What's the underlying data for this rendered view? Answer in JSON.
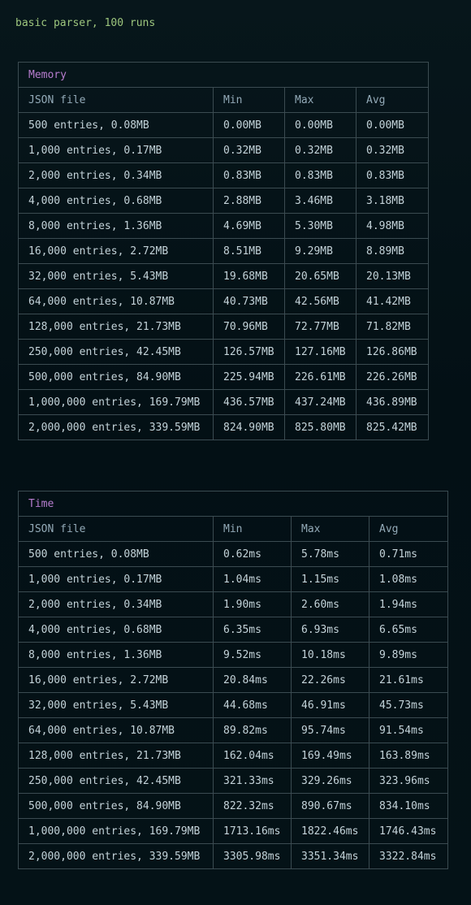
{
  "header": {
    "title": "basic parser, 100 runs"
  },
  "memory": {
    "caption": "Memory",
    "columns": [
      "JSON file",
      "Min",
      "Max",
      "Avg"
    ],
    "rows": [
      [
        "500 entries, 0.08MB",
        "0.00MB",
        "0.00MB",
        "0.00MB"
      ],
      [
        "1,000 entries, 0.17MB",
        "0.32MB",
        "0.32MB",
        "0.32MB"
      ],
      [
        "2,000 entries, 0.34MB",
        "0.83MB",
        "0.83MB",
        "0.83MB"
      ],
      [
        "4,000 entries, 0.68MB",
        "2.88MB",
        "3.46MB",
        "3.18MB"
      ],
      [
        "8,000 entries, 1.36MB",
        "4.69MB",
        "5.30MB",
        "4.98MB"
      ],
      [
        "16,000 entries, 2.72MB",
        "8.51MB",
        "9.29MB",
        "8.89MB"
      ],
      [
        "32,000 entries, 5.43MB",
        "19.68MB",
        "20.65MB",
        "20.13MB"
      ],
      [
        "64,000 entries, 10.87MB",
        "40.73MB",
        "42.56MB",
        "41.42MB"
      ],
      [
        "128,000 entries, 21.73MB",
        "70.96MB",
        "72.77MB",
        "71.82MB"
      ],
      [
        "250,000 entries, 42.45MB",
        "126.57MB",
        "127.16MB",
        "126.86MB"
      ],
      [
        "500,000 entries, 84.90MB",
        "225.94MB",
        "226.61MB",
        "226.26MB"
      ],
      [
        "1,000,000 entries, 169.79MB",
        "436.57MB",
        "437.24MB",
        "436.89MB"
      ],
      [
        "2,000,000 entries, 339.59MB",
        "824.90MB",
        "825.80MB",
        "825.42MB"
      ]
    ]
  },
  "time": {
    "caption": "Time",
    "columns": [
      "JSON file",
      "Min",
      "Max",
      "Avg"
    ],
    "rows": [
      [
        "500 entries, 0.08MB",
        "0.62ms",
        "5.78ms",
        "0.71ms"
      ],
      [
        "1,000 entries, 0.17MB",
        "1.04ms",
        "1.15ms",
        "1.08ms"
      ],
      [
        "2,000 entries, 0.34MB",
        "1.90ms",
        "2.60ms",
        "1.94ms"
      ],
      [
        "4,000 entries, 0.68MB",
        "6.35ms",
        "6.93ms",
        "6.65ms"
      ],
      [
        "8,000 entries, 1.36MB",
        "9.52ms",
        "10.18ms",
        "9.89ms"
      ],
      [
        "16,000 entries, 2.72MB",
        "20.84ms",
        "22.26ms",
        "21.61ms"
      ],
      [
        "32,000 entries, 5.43MB",
        "44.68ms",
        "46.91ms",
        "45.73ms"
      ],
      [
        "64,000 entries, 10.87MB",
        "89.82ms",
        "95.74ms",
        "91.54ms"
      ],
      [
        "128,000 entries, 21.73MB",
        "162.04ms",
        "169.49ms",
        "163.89ms"
      ],
      [
        "250,000 entries, 42.45MB",
        "321.33ms",
        "329.26ms",
        "323.96ms"
      ],
      [
        "500,000 entries, 84.90MB",
        "822.32ms",
        "890.67ms",
        "834.10ms"
      ],
      [
        "1,000,000 entries, 169.79MB",
        "1713.16ms",
        "1822.46ms",
        "1746.43ms"
      ],
      [
        "2,000,000 entries, 339.59MB",
        "3305.98ms",
        "3351.34ms",
        "3322.84ms"
      ]
    ]
  },
  "colors": {
    "background": "#041217",
    "title_text": "#9ec77e",
    "caption_text": "#b77dcf",
    "header_text": "#93aab8",
    "cell_text": "#c4d3d9",
    "border": "#3b4b51"
  }
}
